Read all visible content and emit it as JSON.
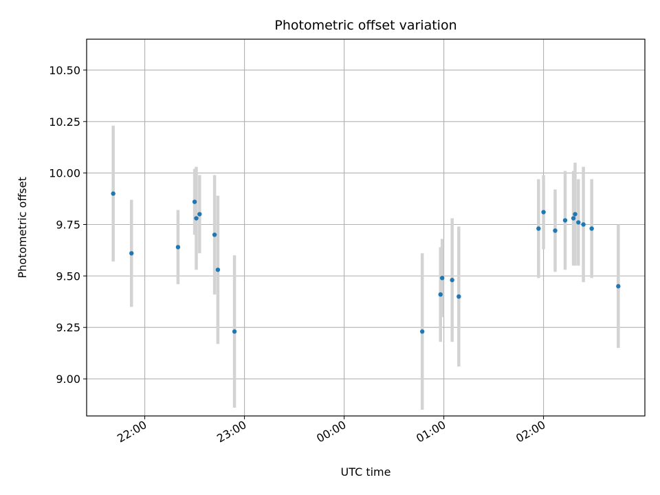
{
  "chart_data": {
    "type": "scatter",
    "title": "Photometric offset variation",
    "xlabel": "UTC time",
    "ylabel": "Photometric offset",
    "x_ticks": [
      "22:00",
      "23:00",
      "00:00",
      "01:00",
      "02:00"
    ],
    "y_ticks": [
      "9.00",
      "9.25",
      "9.50",
      "9.75",
      "10.00",
      "10.25",
      "10.50"
    ],
    "x_axis": {
      "type": "time",
      "start": "21:25",
      "end": "03:01"
    },
    "ylim": [
      8.82,
      10.65
    ],
    "grid": true,
    "colors": {
      "marker": "#1f77b4",
      "errorbar": "#d3d3d3",
      "grid": "#b0b0b0",
      "axes": "#000000"
    },
    "points": [
      {
        "x": "21:41",
        "y": 9.9,
        "err": 0.33
      },
      {
        "x": "21:52",
        "y": 9.61,
        "err": 0.26
      },
      {
        "x": "22:20",
        "y": 9.64,
        "err": 0.18
      },
      {
        "x": "22:30",
        "y": 9.86,
        "err": 0.16
      },
      {
        "x": "22:31",
        "y": 9.78,
        "err": 0.25
      },
      {
        "x": "22:33",
        "y": 9.8,
        "err": 0.19
      },
      {
        "x": "22:42",
        "y": 9.7,
        "err": 0.29
      },
      {
        "x": "22:44",
        "y": 9.53,
        "err": 0.36
      },
      {
        "x": "22:54",
        "y": 9.23,
        "err": 0.37
      },
      {
        "x": "00:47",
        "y": 9.23,
        "err": 0.38
      },
      {
        "x": "00:58",
        "y": 9.41,
        "err": 0.23
      },
      {
        "x": "00:59",
        "y": 9.49,
        "err": 0.19
      },
      {
        "x": "01:05",
        "y": 9.48,
        "err": 0.3
      },
      {
        "x": "01:09",
        "y": 9.4,
        "err": 0.34
      },
      {
        "x": "01:57",
        "y": 9.73,
        "err": 0.24
      },
      {
        "x": "02:00",
        "y": 9.81,
        "err": 0.18
      },
      {
        "x": "02:07",
        "y": 9.72,
        "err": 0.2
      },
      {
        "x": "02:13",
        "y": 9.77,
        "err": 0.24
      },
      {
        "x": "02:18",
        "y": 9.78,
        "err": 0.23
      },
      {
        "x": "02:19",
        "y": 9.8,
        "err": 0.25
      },
      {
        "x": "02:21",
        "y": 9.76,
        "err": 0.21
      },
      {
        "x": "02:24",
        "y": 9.75,
        "err": 0.28
      },
      {
        "x": "02:29",
        "y": 9.73,
        "err": 0.24
      },
      {
        "x": "02:45",
        "y": 9.45,
        "err": 0.3
      }
    ]
  }
}
